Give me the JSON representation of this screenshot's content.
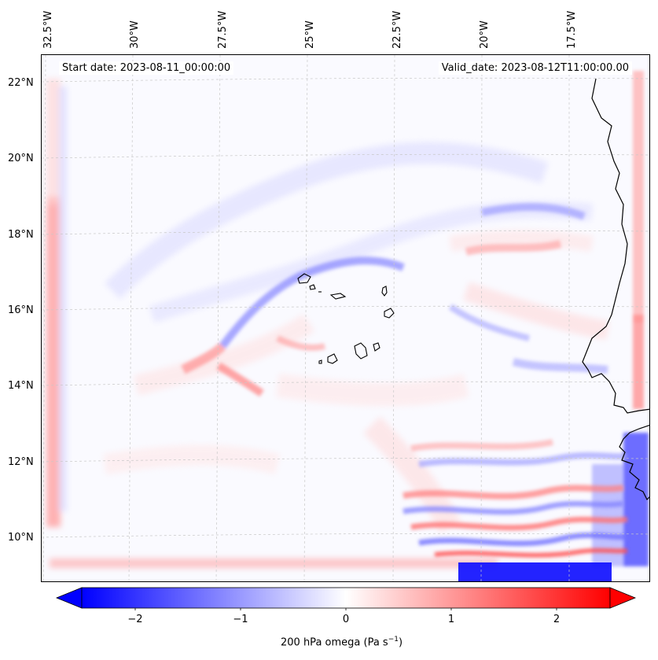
{
  "map": {
    "start_date_text": "Start date: 2023-08-11_00:00:00",
    "valid_date_text": "Valid_date: 2023-08-12T11:00:00.00",
    "lon_labels": [
      "32.5°W",
      "30°W",
      "27.5°W",
      "25°W",
      "22.5°W",
      "20°W",
      "17.5°W"
    ],
    "lat_labels": [
      "22°N",
      "20°N",
      "18°N",
      "16°N",
      "14°N",
      "12°N",
      "10°N"
    ],
    "region": "Cape Verde Islands and West African coast (Senegal, Mauritania, Guinea-Bissau)",
    "field_colors": {
      "negative_max": "#0000ff",
      "zero": "#ffffff",
      "positive_max": "#ff0000"
    }
  },
  "colorbar": {
    "label_prefix": "200 hPa omega (Pa s",
    "label_exponent": "−1",
    "label_suffix": ")",
    "ticks": [
      "−2",
      "−1",
      "0",
      "1",
      "2"
    ],
    "range": [
      -2.75,
      2.75
    ],
    "extend": "both"
  }
}
